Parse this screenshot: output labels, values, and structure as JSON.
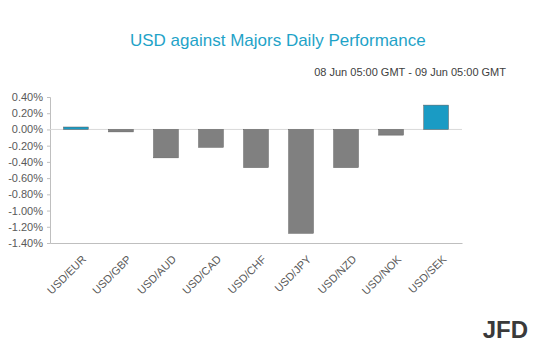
{
  "chart_data": {
    "type": "bar",
    "title": "USD against Majors Daily Performance",
    "subtitle": "08 Jun 05:00 GMT -  09 Jun 05:00 GMT",
    "categories": [
      "USD/EUR",
      "USD/GBP",
      "USD/AUD",
      "USD/CAD",
      "USD/CHF",
      "USD/JPY",
      "USD/NZD",
      "USD/NOK",
      "USD/SEK"
    ],
    "values": [
      0.03,
      -0.03,
      -0.35,
      -0.22,
      -0.47,
      -1.28,
      -0.47,
      -0.07,
      0.3
    ],
    "colors": [
      "#1a9bc4",
      "#808080",
      "#808080",
      "#808080",
      "#808080",
      "#808080",
      "#808080",
      "#808080",
      "#1a9bc4"
    ],
    "ylim": [
      -1.4,
      0.4
    ],
    "yticks": [
      {
        "value": 0.4,
        "label": "0.40%"
      },
      {
        "value": 0.2,
        "label": "0.20%"
      },
      {
        "value": 0,
        "label": "0.00%"
      },
      {
        "value": -0.2,
        "label": "-0.20%"
      },
      {
        "value": -0.4,
        "label": "-0.40%"
      },
      {
        "value": -0.6,
        "label": "-0.60%"
      },
      {
        "value": -0.8,
        "label": "-0.80%"
      },
      {
        "value": -1,
        "label": "-1.00%"
      },
      {
        "value": -1.2,
        "label": "-1.20%"
      },
      {
        "value": -1.4,
        "label": "-1.40%"
      }
    ],
    "grid": false,
    "annotations": [
      "JFD"
    ]
  }
}
